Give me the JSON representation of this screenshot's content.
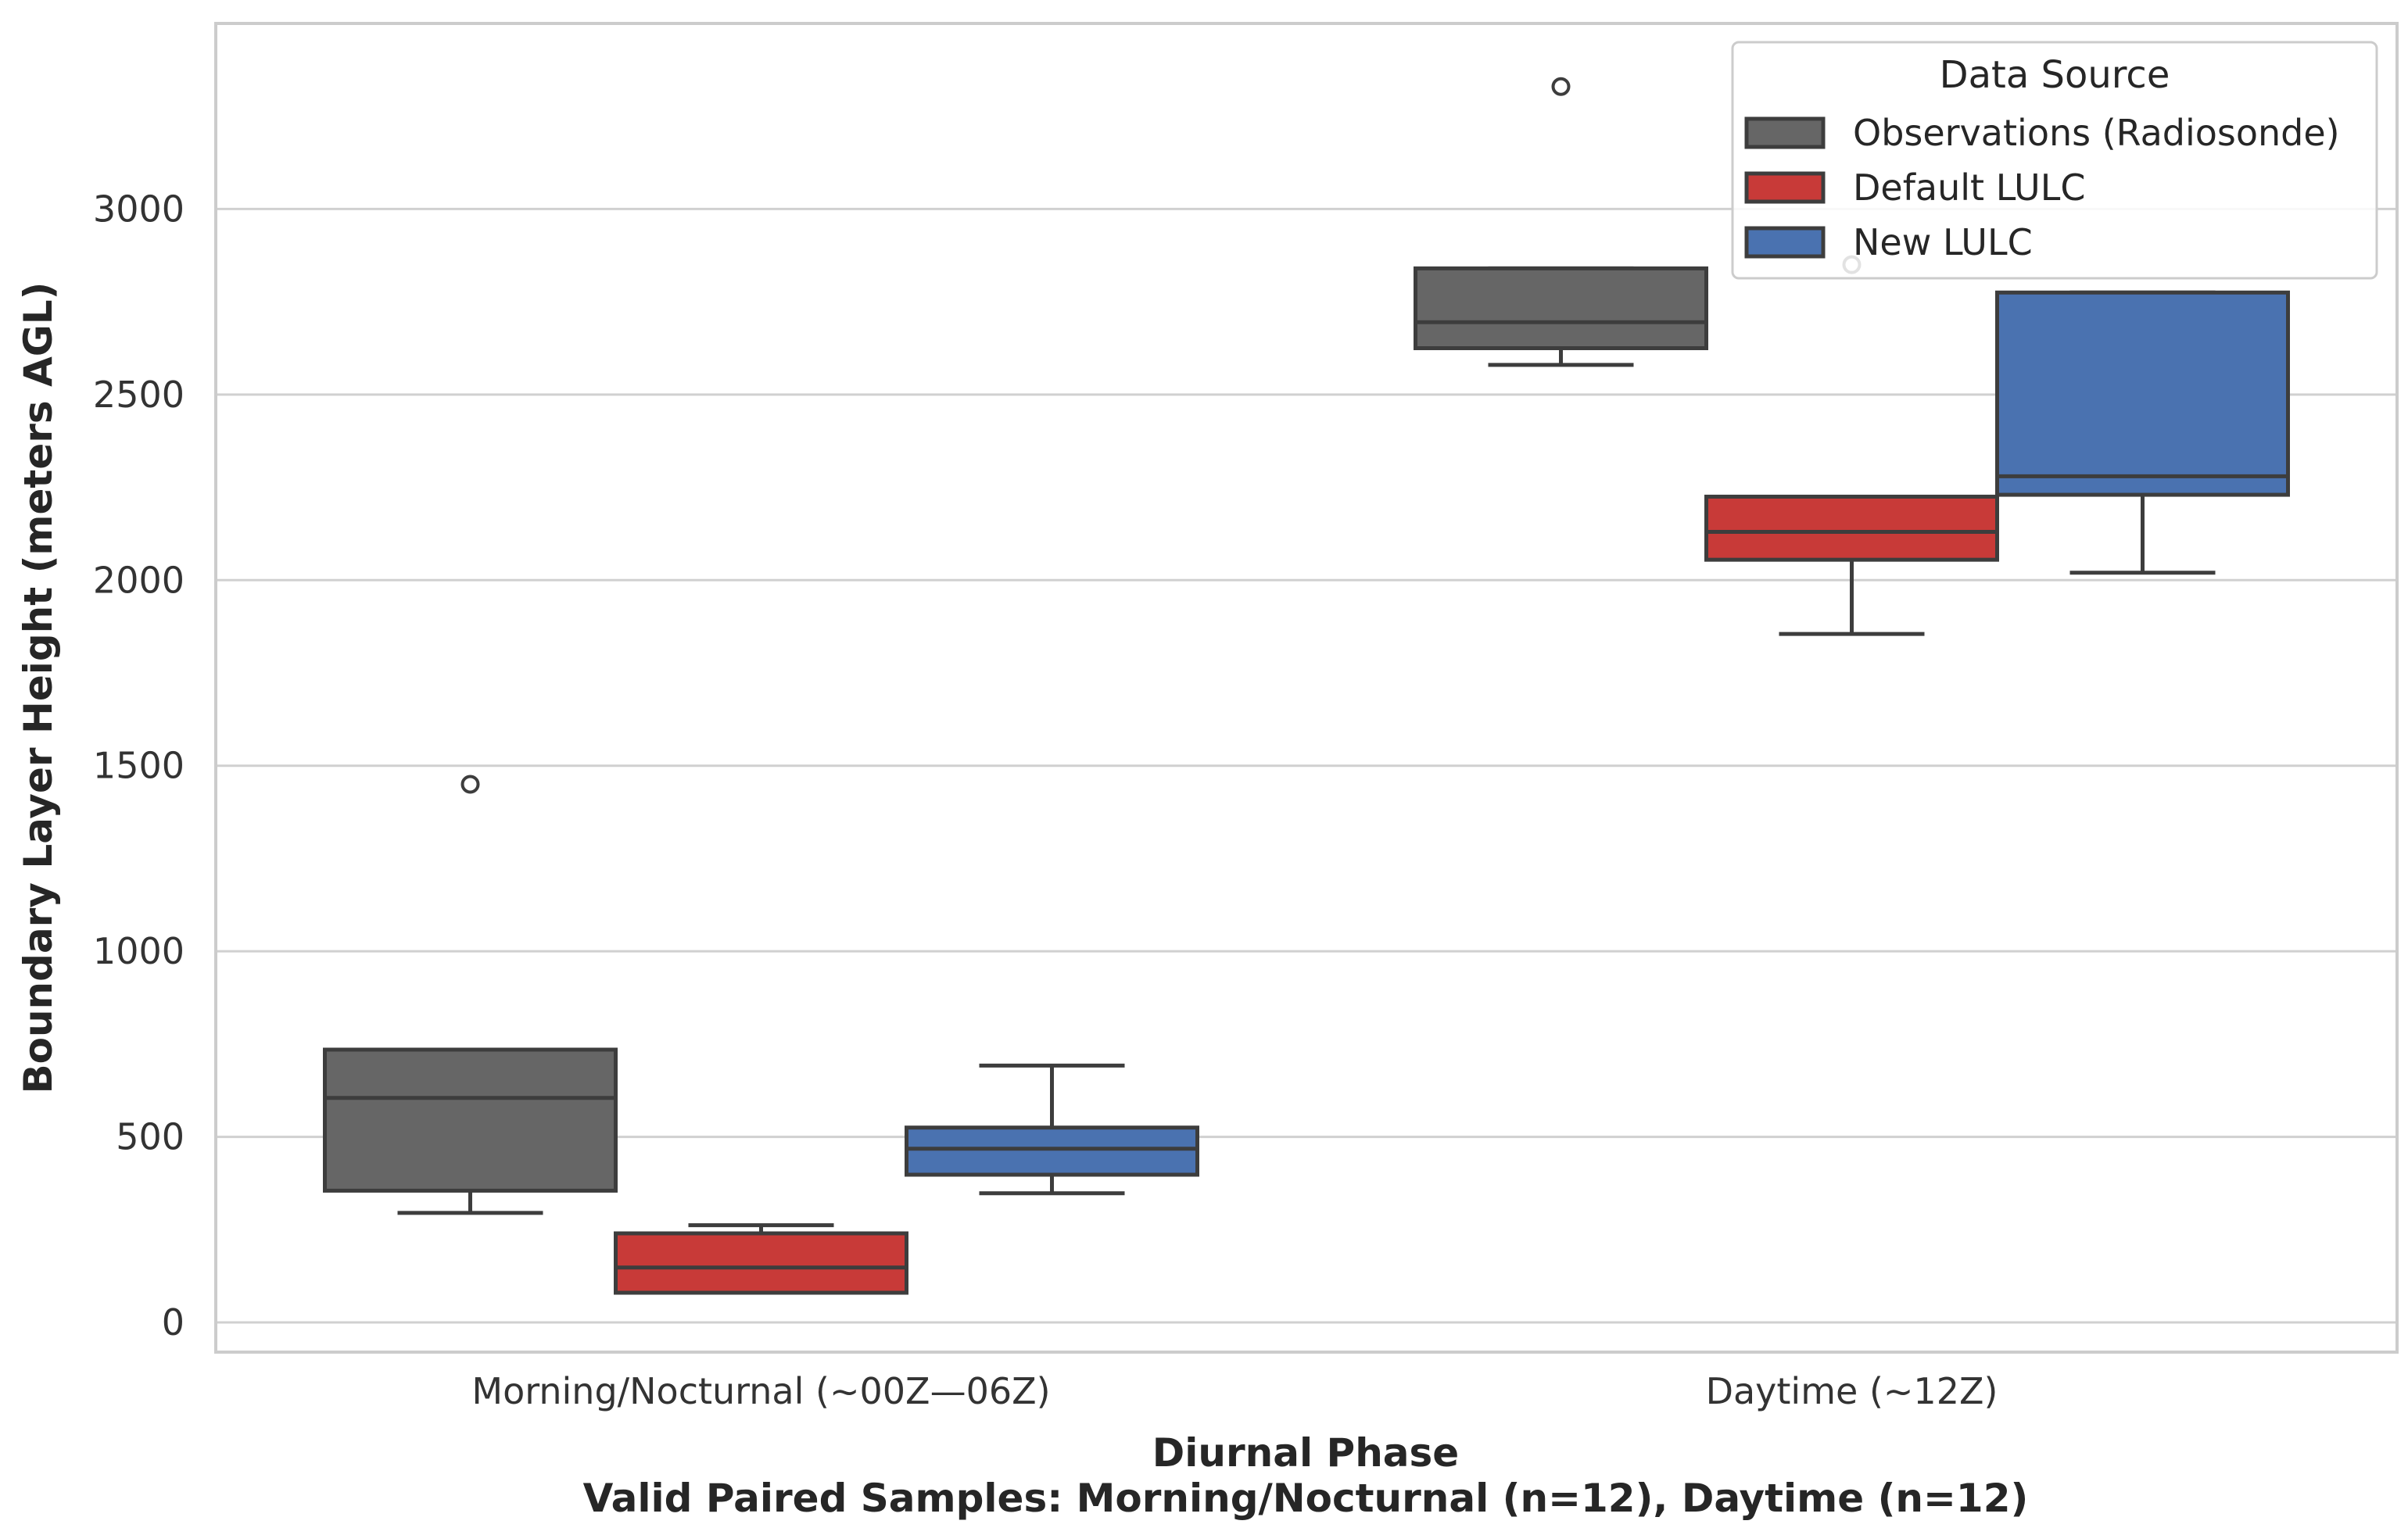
{
  "chart_data": {
    "type": "box",
    "xlabel": "Diurnal Phase",
    "subtitle": "Valid Paired Samples: Morning/Nocturnal (n=12), Daytime (n=12)",
    "ylabel": "Boundary Layer Height (meters AGL)",
    "ylim": [
      -80,
      3500
    ],
    "yticks": [
      0,
      500,
      1000,
      1500,
      2000,
      2500,
      3000
    ],
    "grid": true,
    "categories": [
      "Morning/Nocturnal (~00Z—06Z)",
      "Daytime (~12Z)"
    ],
    "legend": {
      "title": "Data Source",
      "position": "top-right"
    },
    "series": [
      {
        "name": "Observations (Radiosonde)",
        "color": "#666666",
        "boxes": [
          {
            "whisker_low": 295,
            "q1": 355,
            "median": 605,
            "q3": 735,
            "whisker_high": 735,
            "outliers": [
              1450
            ]
          },
          {
            "whisker_low": 2580,
            "q1": 2625,
            "median": 2695,
            "q3": 2840,
            "whisker_high": 2840,
            "outliers": [
              3330
            ]
          }
        ]
      },
      {
        "name": "Default LULC",
        "color": "#c83a38",
        "boxes": [
          {
            "whisker_low": 80,
            "q1": 80,
            "median": 148,
            "q3": 240,
            "whisker_high": 262,
            "outliers": []
          },
          {
            "whisker_low": 1855,
            "q1": 2055,
            "median": 2130,
            "q3": 2225,
            "whisker_high": 2225,
            "outliers": [
              2850
            ]
          }
        ]
      },
      {
        "name": "New LULC",
        "color": "#4a72b0",
        "boxes": [
          {
            "whisker_low": 348,
            "q1": 398,
            "median": 468,
            "q3": 525,
            "whisker_high": 692,
            "outliers": []
          },
          {
            "whisker_low": 2020,
            "q1": 2230,
            "median": 2280,
            "q3": 2775,
            "whisker_high": 2775,
            "outliers": []
          }
        ]
      }
    ]
  }
}
